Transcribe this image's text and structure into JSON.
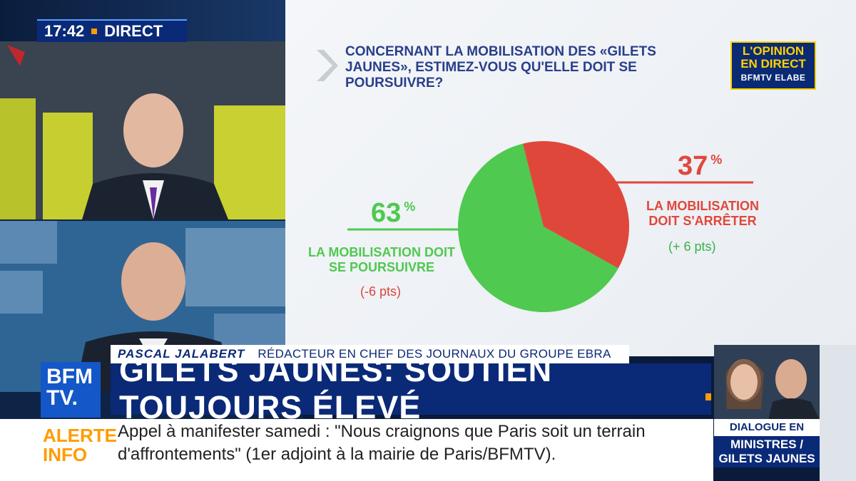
{
  "clock": {
    "time": "17:42",
    "live": "DIRECT"
  },
  "graphic": {
    "question": "CONCERNANT LA MOBILISATION DES «GILETS JAUNES», ESTIMEZ-VOUS QU'ELLE DOIT SE POURSUIVRE?",
    "badge": {
      "line1": "L'OPINION",
      "line2": "EN DIRECT",
      "line3": "BFMTV ELABE"
    }
  },
  "chart_data": {
    "type": "pie",
    "slices": [
      {
        "label": "LA MOBILISATION DOIT SE POURSUIVRE",
        "value": 63,
        "display": "63",
        "unit": "%",
        "delta": "(-6 pts)",
        "color": "#4fc94f",
        "delta_color": "#d9453a"
      },
      {
        "label": "LA MOBILISATION DOIT S'ARRÊTER",
        "value": 37,
        "display": "37",
        "unit": "%",
        "delta": "(+ 6 pts)",
        "color": "#e0473b",
        "delta_color": "#3bb14a"
      }
    ]
  },
  "lower_third": {
    "name": "PASCAL JALABERT",
    "role": "Rédacteur en chef des journaux du groupe EBRA",
    "headline": "GILETS JAUNES: SOUTIEN TOUJOURS ÉLEVÉ"
  },
  "channel": {
    "line1": "BFM",
    "line2": "TV."
  },
  "ticker": {
    "tag1": "ALERTE",
    "tag2": "INFO",
    "text": "Appel à manifester samedi : \"Nous craignons que Paris soit un terrain d'affrontements\" (1er adjoint à la mairie de Paris/BFMTV)."
  },
  "promo": {
    "line1": "DIALOGUE EN DIRECT",
    "line2": "MINISTRES / GILETS JAUNES"
  }
}
